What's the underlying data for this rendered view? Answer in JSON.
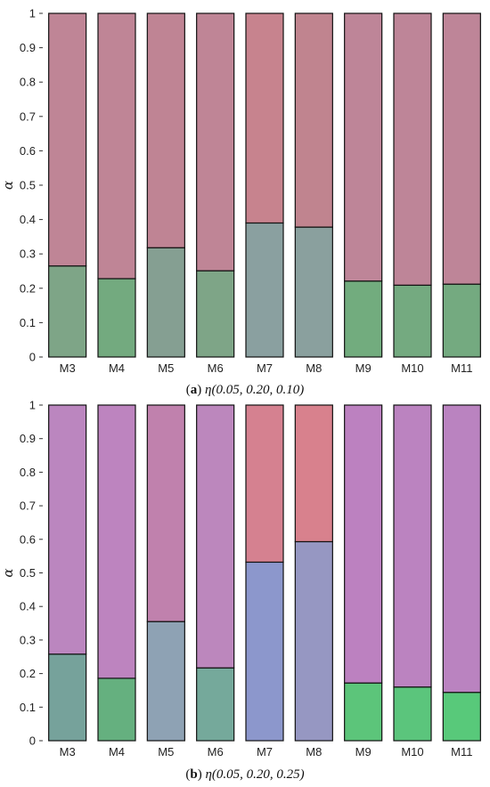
{
  "chart_data": [
    {
      "type": "bar",
      "stacked": true,
      "caption_letter": "a",
      "caption_expr": "η(0.05, 0.20, 0.10)",
      "ylabel": "α",
      "ylim": [
        0,
        1
      ],
      "yticks": [
        0,
        0.1,
        0.2,
        0.3,
        0.4,
        0.5,
        0.6,
        0.7,
        0.8,
        0.9,
        1
      ],
      "categories": [
        "M3",
        "M4",
        "M5",
        "M6",
        "M7",
        "M8",
        "M9",
        "M10",
        "M11"
      ],
      "series": [
        {
          "values": [
            0.265,
            0.228,
            0.318,
            0.251,
            0.39,
            0.378,
            0.221,
            0.209,
            0.212
          ],
          "colors": [
            "#7ea587",
            "#73aa7f",
            "#859f92",
            "#7ea587",
            "#8aa0a0",
            "#8aa09e",
            "#72ac7e",
            "#74aa80",
            "#74aa80"
          ]
        },
        {
          "values": [
            0.735,
            0.772,
            0.682,
            0.749,
            0.61,
            0.622,
            0.779,
            0.791,
            0.788
          ],
          "colors": [
            "#bf8596",
            "#bf8596",
            "#bf8494",
            "#bf8596",
            "#c7838e",
            "#c0848f",
            "#be8598",
            "#be8598",
            "#be8598"
          ]
        }
      ]
    },
    {
      "type": "bar",
      "stacked": true,
      "caption_letter": "b",
      "caption_expr": "η(0.05, 0.20, 0.25)",
      "ylabel": "α",
      "ylim": [
        0,
        1
      ],
      "yticks": [
        0,
        0.1,
        0.2,
        0.3,
        0.4,
        0.5,
        0.6,
        0.7,
        0.8,
        0.9,
        1
      ],
      "categories": [
        "M3",
        "M4",
        "M5",
        "M6",
        "M7",
        "M8",
        "M9",
        "M10",
        "M11"
      ],
      "series": [
        {
          "values": [
            0.258,
            0.186,
            0.355,
            0.217,
            0.532,
            0.593,
            0.172,
            0.16,
            0.144
          ],
          "colors": [
            "#76a29b",
            "#65b07f",
            "#8ea2b4",
            "#75a99b",
            "#8c97cc",
            "#9697c2",
            "#5cc57a",
            "#5bc57c",
            "#58c97a"
          ]
        },
        {
          "values": [
            0.742,
            0.814,
            0.645,
            0.783,
            0.468,
            0.407,
            0.828,
            0.84,
            0.856
          ],
          "colors": [
            "#bb86bf",
            "#bd84bf",
            "#c081ad",
            "#bc87bd",
            "#d58190",
            "#d8818d",
            "#bc81c0",
            "#bb83c0",
            "#ba83c0"
          ]
        }
      ]
    }
  ]
}
